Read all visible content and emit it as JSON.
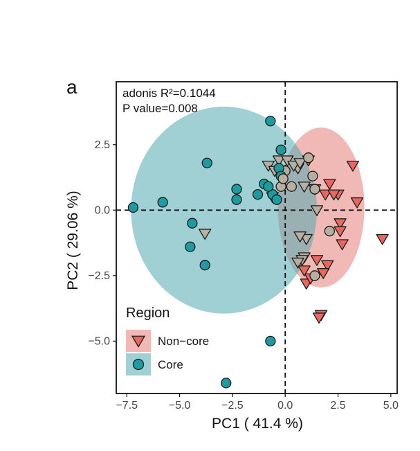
{
  "panel_label": "a",
  "chart_data": {
    "type": "scatter",
    "xlabel": "PC1 ( 41.4 %)",
    "ylabel": "PC2 ( 29.06 %)",
    "xlim": [
      -8.0,
      5.3
    ],
    "ylim": [
      -7.0,
      4.9
    ],
    "xticks": [
      -7.5,
      -5.0,
      -2.5,
      0.0,
      2.5,
      5.0
    ],
    "xtick_labels": [
      "−7.5",
      "−5.0",
      "−2.5",
      "0.0",
      "2.5",
      "5.0"
    ],
    "yticks": [
      2.5,
      0.0,
      -2.5,
      -5.0
    ],
    "ytick_labels": [
      "2.5",
      "0.0",
      "−2.5",
      "−5.0"
    ],
    "grid": false,
    "reference_lines": {
      "x": 0,
      "y": 0,
      "style": "dashed"
    },
    "annotations": [
      "adonis R²=0.1044",
      "P value=0.008"
    ],
    "legend": {
      "title": "Region",
      "placement": "bottom-left"
    },
    "series": [
      {
        "name": "Non−core",
        "marker": "triangle-down",
        "color": "#E8685F",
        "ellipse": {
          "cx": 1.7,
          "cy": 0.1,
          "rx": 2.05,
          "ry": 3.05,
          "angle": 0
        },
        "x": [
          3.2,
          3.4,
          4.6,
          2.6,
          2.7,
          2.5,
          2.6,
          2.0,
          1.8,
          1.0,
          1.2,
          1.7,
          1.6,
          1.5,
          1.9,
          2.3,
          2.1,
          1.4,
          0.9,
          0.6,
          1.1,
          -0.8,
          -0.5,
          -0.3,
          0.1,
          0.4,
          0.7,
          0.9,
          0.8,
          1.0,
          1.5,
          0.6,
          0.9,
          0.7,
          -0.6,
          -3.8
        ],
        "y": [
          1.7,
          0.3,
          -1.1,
          -0.5,
          -1.3,
          0.6,
          -0.8,
          -2.1,
          -2.4,
          -2.8,
          -2.6,
          -4.0,
          -4.1,
          0.0,
          0.6,
          0.6,
          1.0,
          0.8,
          0.9,
          1.6,
          1.9,
          1.7,
          1.5,
          1.9,
          1.9,
          1.7,
          1.8,
          -1.8,
          -1.9,
          -1.1,
          -1.9,
          -2.0,
          -2.3,
          -1.0,
          0.5,
          -0.9
        ]
      },
      {
        "name": "Core",
        "marker": "circle",
        "color": "#1E9AA0",
        "ellipse": {
          "cx": -2.9,
          "cy": 0.0,
          "rx": 4.4,
          "ry": 3.95,
          "angle": 0
        },
        "x": [
          -0.7,
          -7.2,
          -5.8,
          -4.4,
          -4.5,
          -3.8,
          -3.7,
          -2.3,
          -2.3,
          -0.7,
          -2.8,
          -0.2,
          0.0,
          1.1,
          1.4,
          -0.3,
          -0.2,
          -1.0,
          -0.6,
          -0.4,
          -0.2,
          -1.3,
          -0.8,
          1.4,
          2.1,
          1.3,
          0.3,
          -0.1
        ],
        "y": [
          3.4,
          0.1,
          0.3,
          -0.5,
          -1.4,
          -2.1,
          1.8,
          0.8,
          0.4,
          -5.0,
          -6.6,
          2.3,
          1.5,
          2.0,
          0.8,
          1.6,
          1.3,
          1.0,
          0.6,
          0.4,
          0.9,
          0.6,
          0.9,
          -2.5,
          -0.8,
          1.3,
          0.9,
          1.2
        ]
      }
    ]
  }
}
